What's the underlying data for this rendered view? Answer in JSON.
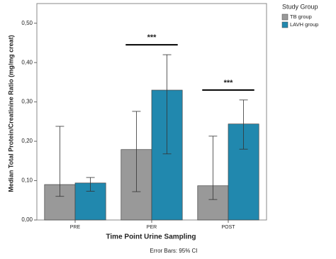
{
  "chart_data": {
    "type": "bar",
    "ylabel": "Median Total Protein/Creatinine Ratio (mg/mg creat)",
    "xlabel": "Time Point Urine Sampling",
    "footnote": "Error Bars: 95% CI",
    "legend_title": "Study Group",
    "legend_position": "outside-right-top",
    "categories": [
      "PRE",
      "PER",
      "POST"
    ],
    "series": [
      {
        "name": "TB group",
        "color": "#999999",
        "values": [
          0.09,
          0.179,
          0.087
        ],
        "error_low": [
          0.06,
          0.072,
          0.052
        ],
        "error_high": [
          0.238,
          0.276,
          0.213
        ]
      },
      {
        "name": "LAVH group",
        "color": "#2188ae",
        "values": [
          0.094,
          0.33,
          0.244
        ],
        "error_low": [
          0.073,
          0.168,
          0.18
        ],
        "error_high": [
          0.108,
          0.42,
          0.305
        ]
      }
    ],
    "annotations": [
      {
        "text": "***",
        "category": 1
      },
      {
        "text": "***",
        "category": 2
      }
    ],
    "ylim": [
      0,
      0.55
    ],
    "yticks": [
      {
        "value": 0,
        "label": "0,00"
      },
      {
        "value": 0.1,
        "label": "0,10"
      },
      {
        "value": 0.2,
        "label": "0,20"
      },
      {
        "value": 0.3,
        "label": "0,30"
      },
      {
        "value": 0.4,
        "label": "0,40"
      },
      {
        "value": 0.5,
        "label": "0,50"
      }
    ]
  }
}
